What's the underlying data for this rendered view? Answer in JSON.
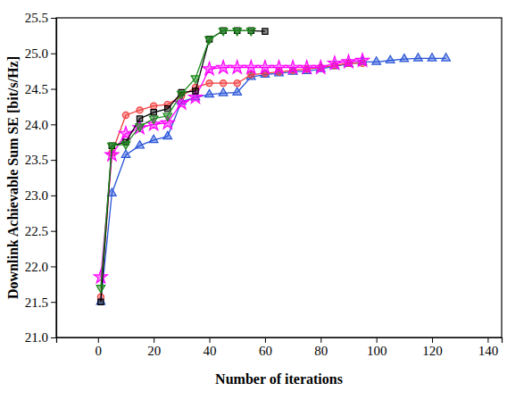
{
  "chart_data": {
    "type": "line",
    "x_label": "Number of iterations",
    "y_label": "Downlink Achievable Sum SE [bit/s/Hz]",
    "xlim": [
      -15,
      145
    ],
    "xticks": [
      0,
      20,
      40,
      60,
      80,
      100,
      120,
      140
    ],
    "ylim": [
      21,
      25.5
    ],
    "yticks": [
      {
        "value": 21,
        "label": "21.0"
      },
      {
        "value": 21.5,
        "label": "21.5"
      },
      {
        "value": 22,
        "label": "22.0"
      },
      {
        "value": 22.5,
        "label": "22.5"
      },
      {
        "value": 23,
        "label": "23.0"
      },
      {
        "value": 23.5,
        "label": "23.5"
      },
      {
        "value": 24,
        "label": "24.0"
      },
      {
        "value": 24.5,
        "label": "24.5"
      },
      {
        "value": 25,
        "label": "25.0"
      },
      {
        "value": 25.5,
        "label": "25.5"
      }
    ],
    "grid": false,
    "series": [
      {
        "color": "#2a55d8",
        "marker": "triangle",
        "x": [
          1,
          5,
          10,
          15,
          20,
          25,
          30,
          35,
          40,
          45,
          50,
          55,
          60,
          65,
          70,
          75,
          80,
          85,
          90,
          95,
          100,
          105,
          110,
          115,
          120,
          125
        ],
        "values": [
          21.5,
          23.03,
          23.57,
          23.7,
          23.78,
          23.83,
          24.32,
          24.38,
          24.42,
          24.44,
          24.45,
          24.67,
          24.7,
          24.72,
          24.74,
          24.75,
          24.78,
          24.82,
          24.85,
          24.88,
          24.88,
          24.9,
          24.92,
          24.93,
          24.93,
          24.93
        ]
      },
      {
        "color": "#f03c3c",
        "marker": "circle",
        "x": [
          1,
          5,
          10,
          15,
          20,
          25,
          30,
          35,
          40,
          45,
          50,
          55,
          60,
          65,
          70,
          75,
          80,
          85,
          90,
          95
        ],
        "values": [
          21.57,
          23.6,
          24.13,
          24.2,
          24.26,
          24.28,
          24.4,
          24.52,
          24.58,
          24.58,
          24.58,
          24.7,
          24.72,
          24.74,
          24.76,
          24.78,
          24.8,
          24.83,
          24.86,
          24.86
        ]
      },
      {
        "color": "#ff00ff",
        "marker": "star",
        "x": [
          1,
          5,
          10,
          15,
          20,
          25,
          30,
          35,
          40,
          45,
          50,
          55,
          60,
          65,
          70,
          75,
          80,
          85,
          90,
          95
        ],
        "values": [
          21.85,
          23.57,
          23.87,
          23.95,
          24.0,
          24.02,
          24.3,
          24.38,
          24.78,
          24.8,
          24.8,
          24.8,
          24.8,
          24.8,
          24.8,
          24.8,
          24.8,
          24.86,
          24.88,
          24.9
        ]
      },
      {
        "color": "#000000",
        "marker": "square",
        "x": [
          1,
          5,
          10,
          15,
          20,
          25,
          30,
          35,
          40,
          45,
          50,
          55,
          60
        ],
        "values": [
          21.5,
          23.7,
          23.75,
          24.08,
          24.17,
          24.22,
          24.45,
          24.47,
          25.2,
          25.32,
          25.32,
          25.32,
          25.31
        ]
      },
      {
        "color": "#1a8a1a",
        "marker": "triangle-down",
        "x": [
          1,
          5,
          10,
          15,
          20,
          25,
          30,
          35,
          40,
          45,
          50,
          55
        ],
        "values": [
          21.7,
          23.7,
          23.72,
          23.97,
          24.08,
          24.12,
          24.43,
          24.65,
          25.2,
          25.32,
          25.32,
          25.32
        ]
      }
    ]
  }
}
